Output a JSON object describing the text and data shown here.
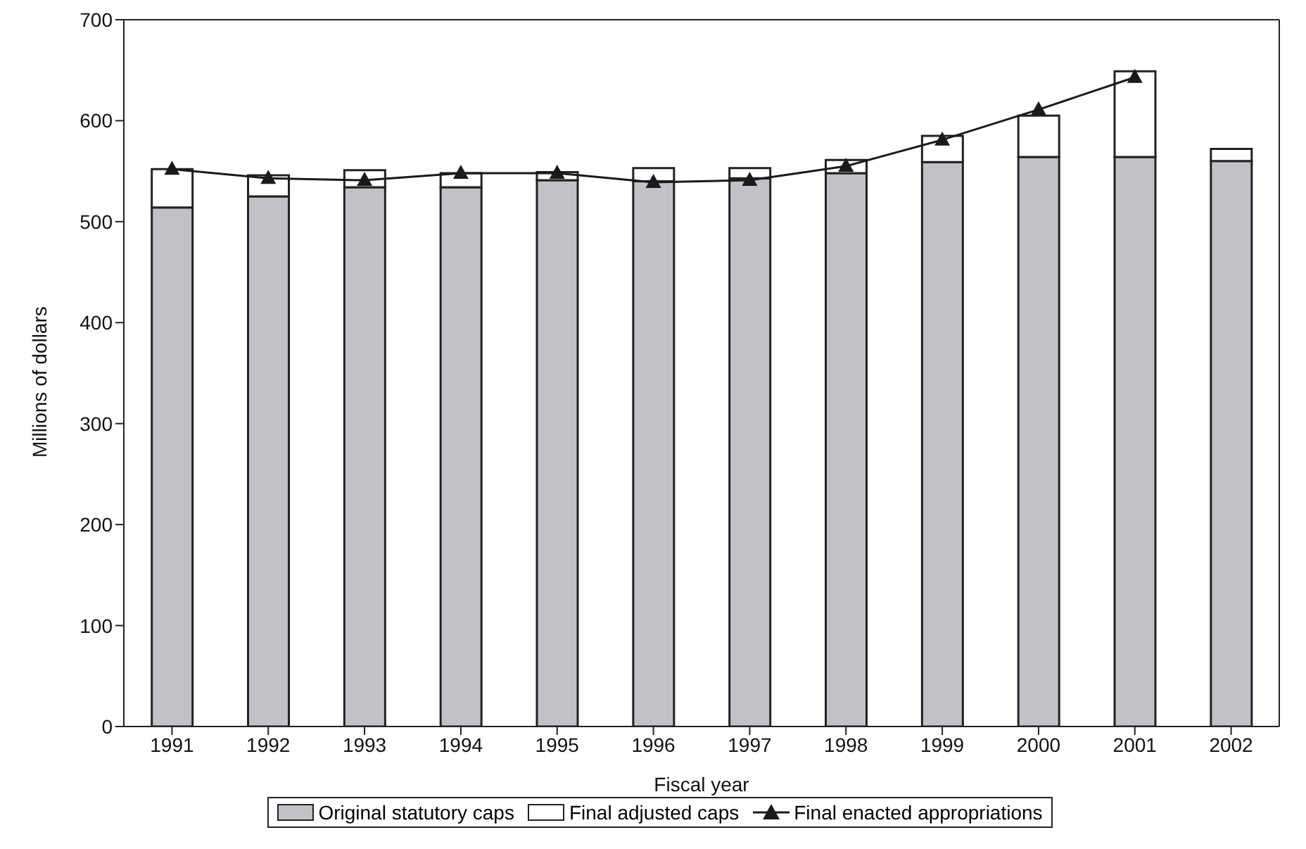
{
  "chart_data": {
    "type": "bar",
    "xlabel": "Fiscal year",
    "ylabel": "Millions of dollars",
    "categories": [
      "1991",
      "1992",
      "1993",
      "1994",
      "1995",
      "1996",
      "1997",
      "1998",
      "1999",
      "2000",
      "2001",
      "2002"
    ],
    "stacked": true,
    "series": [
      {
        "name": "Original statutory caps",
        "color": "#c0c2c8",
        "values": [
          514,
          525,
          534,
          534,
          541,
          540,
          543,
          548,
          559,
          564,
          564,
          560
        ]
      },
      {
        "name": "Final adjusted caps",
        "color": "#ffffff",
        "values": [
          38,
          21,
          17,
          14,
          8,
          13,
          10,
          13,
          26,
          41,
          85,
          12
        ]
      },
      {
        "name": "Final enacted appropriations",
        "type": "line",
        "color": "#1a1a1a",
        "marker": "triangle",
        "values": [
          552,
          543,
          541,
          548,
          548,
          539,
          541,
          555,
          581,
          611,
          643,
          null
        ]
      }
    ],
    "ylim": [
      0,
      700
    ],
    "yticks": [
      0,
      100,
      200,
      300,
      400,
      500,
      600,
      700
    ],
    "grid": false,
    "legend": "bottom"
  }
}
